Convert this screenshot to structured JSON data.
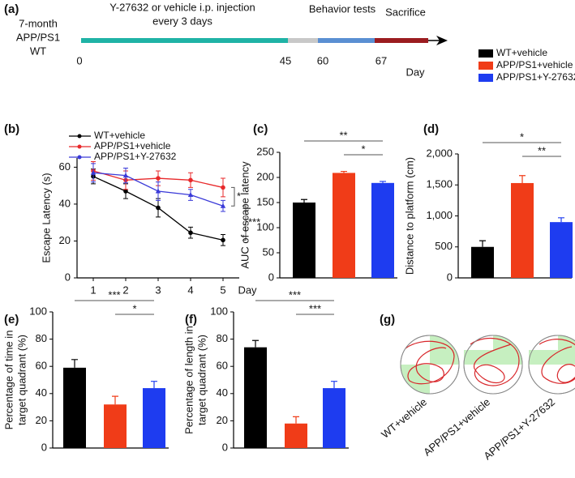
{
  "chart_data": [
    {
      "type": "timeline",
      "panel": "(a)",
      "cohort": [
        "7-month",
        "APP/PS1",
        "WT"
      ],
      "phases": [
        {
          "label": [
            "Y-27632 or  vehicle i.p. injection",
            "every 3 days"
          ],
          "color": "#1fb3a6"
        },
        {
          "color": "#c8c8c8"
        },
        {
          "label": [
            "Behavior tests"
          ],
          "color": "#5a8fd2"
        },
        {
          "label": [
            "Sacrifice"
          ],
          "color": "#9b1c20"
        }
      ],
      "ticks": [
        0,
        45,
        60,
        67
      ],
      "unit": "Day"
    },
    {
      "type": "legend",
      "series": [
        {
          "name": "WT+vehicle",
          "color": "#000000"
        },
        {
          "name": "APP/PS1+vehicle",
          "color": "#f03c18"
        },
        {
          "name": "APP/PS1+Y-27632",
          "color": "#1e3cf0"
        }
      ]
    },
    {
      "type": "line",
      "panel": "(b)",
      "ylabel": "Escape Latency (s)",
      "xlabel": "Day",
      "x": [
        1,
        2,
        3,
        4,
        5
      ],
      "xlim": [
        0.5,
        5.5
      ],
      "xticks": [
        1,
        2,
        3,
        4,
        5
      ],
      "ylim": [
        0,
        65
      ],
      "yticks": [
        0,
        20,
        40,
        60
      ],
      "series": [
        {
          "name": "WT+vehicle",
          "color": "#000000",
          "values": [
            55,
            47,
            38,
            24.5,
            20.5
          ],
          "errors": [
            4,
            4,
            5,
            3,
            3
          ]
        },
        {
          "name": "APP/PS1+vehicle",
          "color": "#e8292b",
          "values": [
            58,
            53,
            54,
            53,
            49
          ],
          "errors": [
            5,
            5,
            4,
            4,
            5
          ]
        },
        {
          "name": "APP/PS1+Y-27632",
          "color": "#3a3ad8",
          "values": [
            57,
            55.5,
            47,
            45,
            39
          ],
          "errors": [
            5,
            4,
            5,
            3,
            3
          ]
        }
      ],
      "annotations": [
        {
          "text": "*",
          "between": [
            1,
            2
          ]
        },
        {
          "text": "***",
          "between": [
            2,
            0
          ]
        }
      ]
    },
    {
      "type": "bar",
      "panel": "(c)",
      "ylabel": [
        "AUC of escape latency"
      ],
      "ylim": [
        0,
        250
      ],
      "yticks": [
        0,
        50,
        100,
        150,
        200,
        250
      ],
      "values": [
        150,
        209,
        189
      ],
      "errors": [
        6,
        3,
        3
      ],
      "colors": [
        "#000000",
        "#f03c18",
        "#1e3cf0"
      ],
      "annotations": [
        {
          "text": "**",
          "between": [
            0,
            2
          ]
        },
        {
          "text": "*",
          "between": [
            1,
            2
          ]
        }
      ]
    },
    {
      "type": "bar",
      "panel": "(d)",
      "ylabel": [
        "Distance to platform (cm)"
      ],
      "ylim": [
        0,
        2000
      ],
      "yticks": [
        0,
        500,
        {
          "value": 1000,
          "label": "1,000"
        },
        {
          "value": 1500,
          "label": "1,500"
        },
        {
          "value": 2000,
          "label": "2,000"
        }
      ],
      "values": [
        500,
        1530,
        900
      ],
      "errors": [
        100,
        120,
        70
      ],
      "colors": [
        "#000000",
        "#f03c18",
        "#1e3cf0"
      ],
      "annotations": [
        {
          "text": "*",
          "between": [
            0,
            2
          ]
        },
        {
          "text": "**",
          "between": [
            1,
            2
          ]
        }
      ]
    },
    {
      "type": "bar",
      "panel": "(e)",
      "ylabel": [
        "Percentage of time in",
        "target quadrant (%)"
      ],
      "ylim": [
        0,
        100
      ],
      "yticks": [
        0,
        20,
        40,
        60,
        80,
        100
      ],
      "values": [
        59,
        32,
        44
      ],
      "errors": [
        6,
        6,
        5
      ],
      "colors": [
        "#000000",
        "#f03c18",
        "#1e3cf0"
      ],
      "annotations": [
        {
          "text": "***",
          "between": [
            0,
            2
          ]
        },
        {
          "text": "*",
          "between": [
            1,
            2
          ]
        }
      ]
    },
    {
      "type": "bar",
      "panel": "(f)",
      "ylabel": [
        "Percentage of length in",
        "target quadrant (%)"
      ],
      "ylim": [
        0,
        100
      ],
      "yticks": [
        0,
        20,
        40,
        60,
        80,
        100
      ],
      "values": [
        74,
        18,
        44
      ],
      "errors": [
        5,
        5,
        5
      ],
      "colors": [
        "#000000",
        "#f03c18",
        "#1e3cf0"
      ],
      "annotations": [
        {
          "text": "***",
          "between": [
            0,
            2
          ]
        },
        {
          "text": "***",
          "between": [
            1,
            2
          ]
        }
      ]
    },
    {
      "type": "tracks",
      "panel": "(g)",
      "labels": [
        "WT+vehicle",
        "APP/PS1+vehicle",
        "APP/PS1+Y-27632"
      ]
    }
  ]
}
